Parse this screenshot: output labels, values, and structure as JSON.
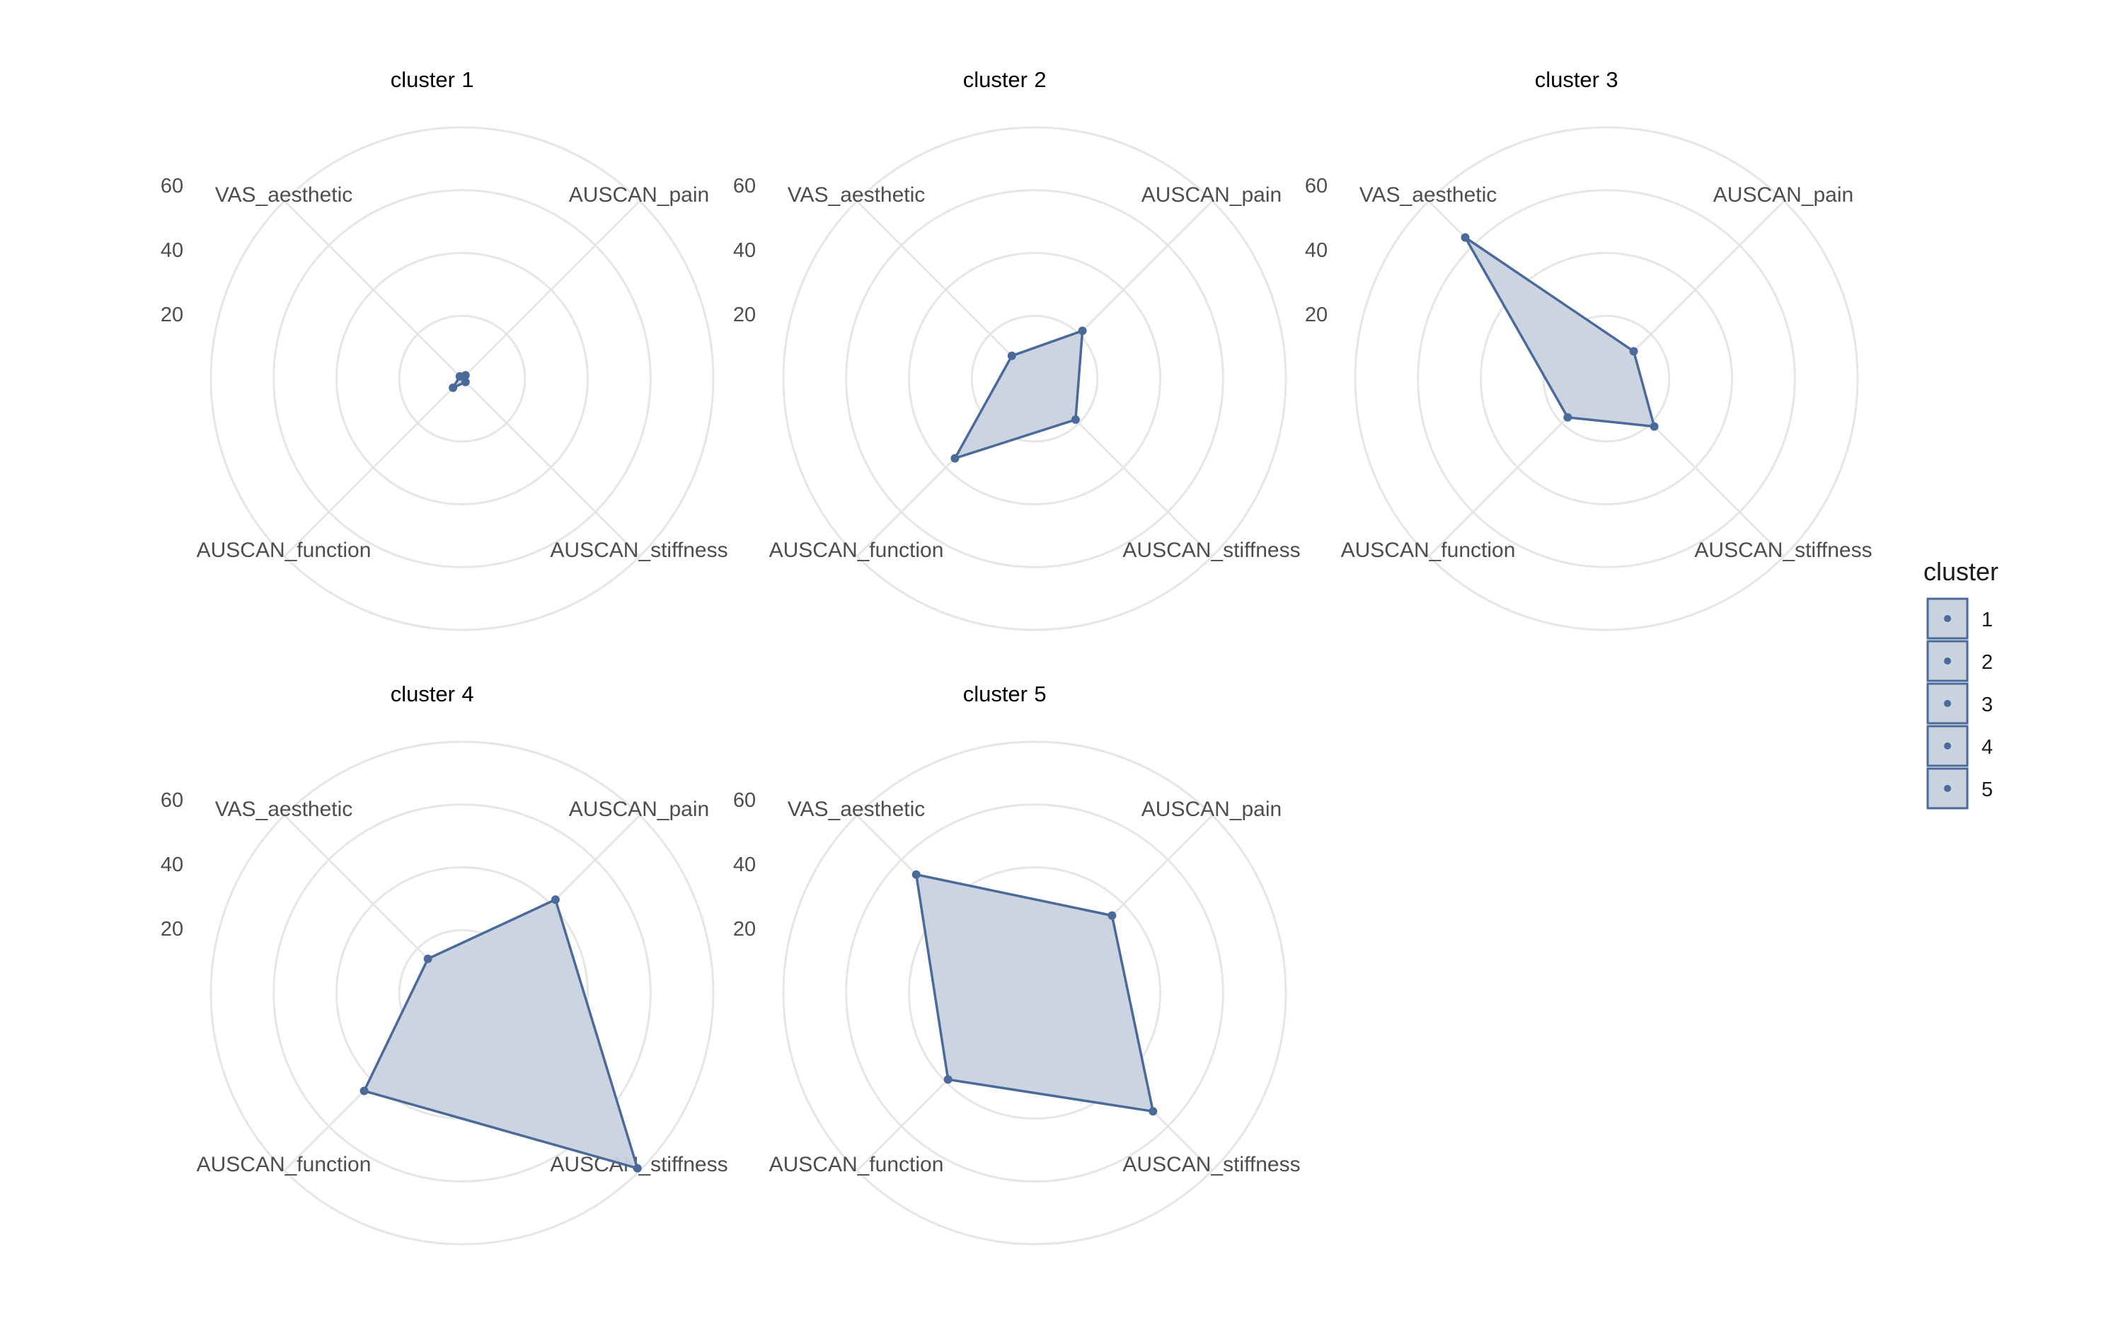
{
  "chart_data": {
    "type": "radar",
    "facet_label": "cluster",
    "axes": [
      "AUSCAN_pain",
      "AUSCAN_stiffness",
      "AUSCAN_function",
      "VAS_aesthetic"
    ],
    "radial_ticks": [
      20,
      40,
      60
    ],
    "rmax": 78,
    "grid": true,
    "color": "#4a6a9a",
    "fill": "#c9d2df",
    "legend": {
      "title": "cluster",
      "entries": [
        "1",
        "2",
        "3",
        "4",
        "5"
      ],
      "placement": "right"
    },
    "series": [
      {
        "name": "1",
        "values": [
          1.5,
          1.5,
          4,
          1
        ]
      },
      {
        "name": "2",
        "values": [
          21,
          18,
          35,
          10
        ]
      },
      {
        "name": "3",
        "values": [
          12,
          21,
          17,
          62
        ]
      },
      {
        "name": "4",
        "values": [
          41,
          77,
          43,
          15
        ]
      },
      {
        "name": "5",
        "values": [
          34,
          52,
          38,
          52
        ]
      }
    ]
  }
}
